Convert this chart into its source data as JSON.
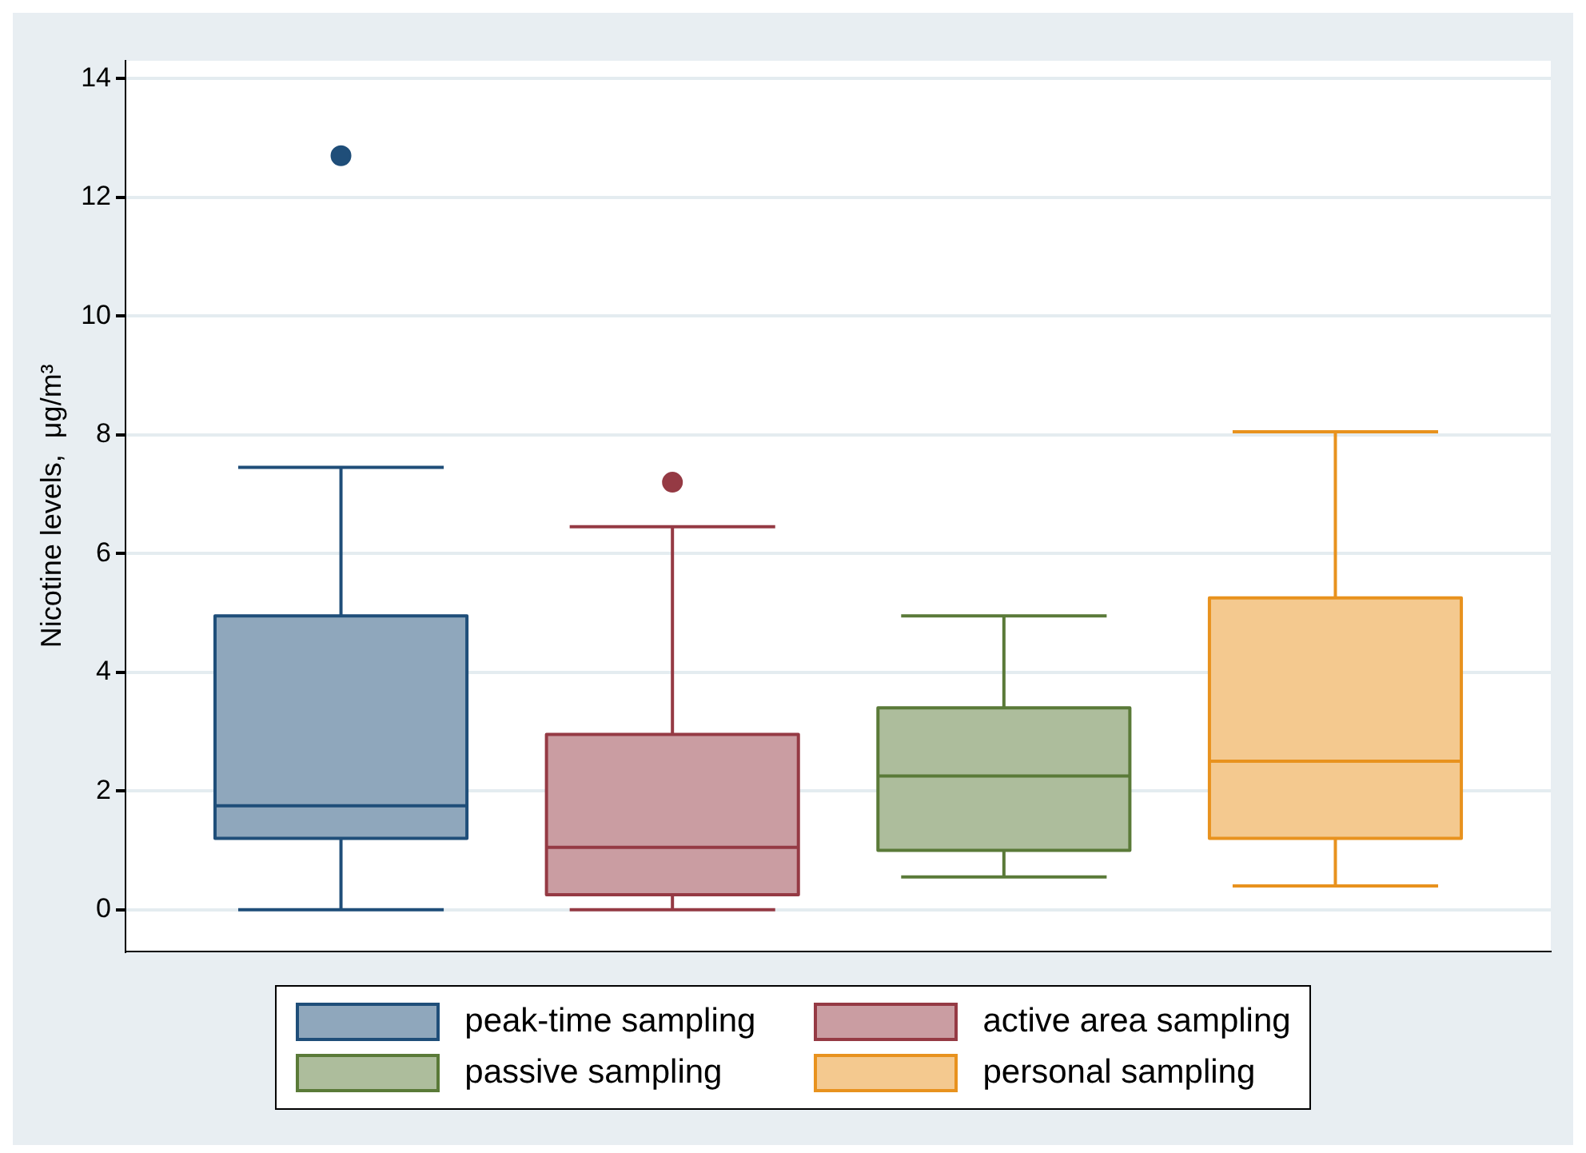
{
  "chart_data": {
    "type": "box",
    "categories": [
      null
    ],
    "ylabel": "Nicotine levels,  μg/m³",
    "ylim": [
      -0.7,
      14.3
    ],
    "yticks": [
      0,
      2,
      4,
      6,
      8,
      10,
      12,
      14
    ],
    "grid": "y",
    "legend": "bottom",
    "tick_labels": "y",
    "marker": "circle",
    "series": [
      {
        "name": "peak-time sampling",
        "color": "#1f4e79",
        "boxes": [
          {
            "low": 0,
            "q1": 1.2,
            "median": 1.75,
            "q3": 4.95,
            "high": 7.45,
            "outliers": [
              12.7
            ]
          }
        ]
      },
      {
        "name": "active area sampling",
        "color": "#953a44",
        "boxes": [
          {
            "low": 0,
            "q1": 0.25,
            "median": 1.05,
            "q3": 2.95,
            "high": 6.45,
            "outliers": [
              7.2
            ]
          }
        ]
      },
      {
        "name": "passive sampling",
        "color": "#5a7a38",
        "boxes": [
          {
            "low": 0.55,
            "q1": 1.0,
            "median": 2.25,
            "q3": 3.4,
            "high": 4.95
          }
        ]
      },
      {
        "name": "personal sampling",
        "color": "#e8921e",
        "boxes": [
          {
            "low": 0.4,
            "q1": 1.2,
            "median": 2.5,
            "q3": 5.25,
            "high": 8.05
          }
        ]
      }
    ]
  }
}
